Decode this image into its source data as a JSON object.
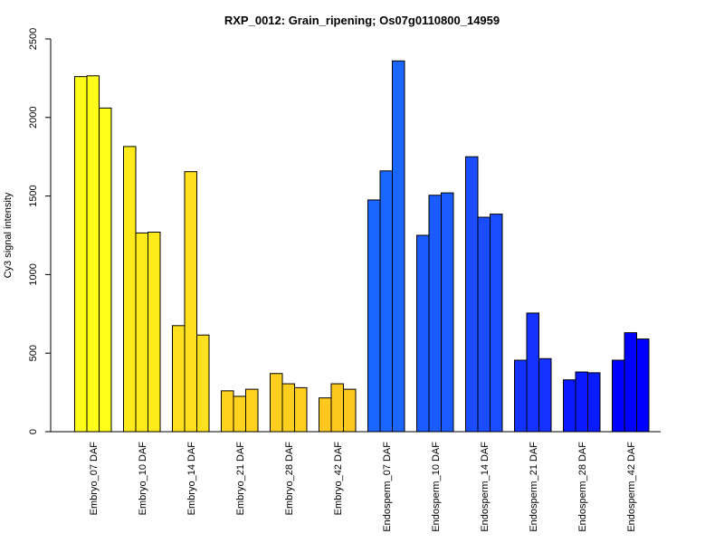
{
  "chart_data": {
    "type": "bar",
    "title": "RXP_0012: Grain_ripening; Os07g0110800_14959",
    "xlabel": "",
    "ylabel": "Cy3 signal intensity",
    "ylim": [
      0,
      2500
    ],
    "yticks": [
      "0",
      "500",
      "1000",
      "1500",
      "2000",
      "2500"
    ],
    "grid": false,
    "legend": "none",
    "categories": [
      "Embryo_07 DAF",
      "Embryo_10 DAF",
      "Embryo_14 DAF",
      "Embryo_21 DAF",
      "Embryo_28 DAF",
      "Embryo_42 DAF",
      "Endosperm_07 DAF",
      "Endosperm_10 DAF",
      "Endosperm_14 DAF",
      "Endosperm_21 DAF",
      "Endosperm_28 DAF",
      "Endosperm_42 DAF"
    ],
    "colors": [
      "#ffff1a",
      "#ffeb1a",
      "#ffe01f",
      "#ffd21f",
      "#ffcf1f",
      "#ffc81f",
      "#1a66ff",
      "#1a5cff",
      "#1a4dff",
      "#1433ff",
      "#0a1aff",
      "#0000ff"
    ],
    "values": [
      [
        2260,
        2265,
        2060
      ],
      [
        1815,
        1265,
        1270
      ],
      [
        675,
        1655,
        615
      ],
      [
        260,
        225,
        270
      ],
      [
        370,
        305,
        280
      ],
      [
        215,
        305,
        270
      ],
      [
        1475,
        1660,
        2360
      ],
      [
        1250,
        1505,
        1520
      ],
      [
        1750,
        1365,
        1385
      ],
      [
        455,
        755,
        465
      ],
      [
        330,
        380,
        375
      ],
      [
        455,
        630,
        590
      ]
    ]
  }
}
